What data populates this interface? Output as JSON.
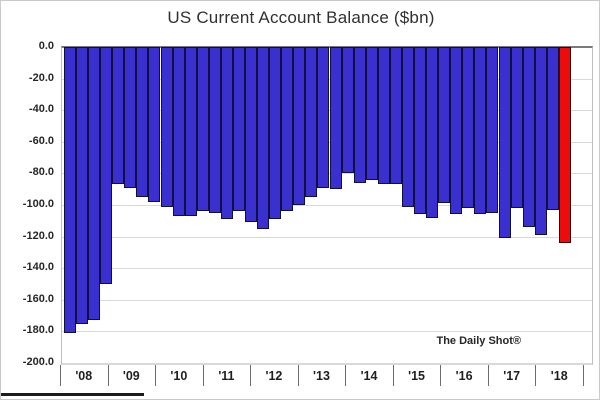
{
  "chart_data": {
    "type": "bar",
    "title": "US Current Account Balance ($bn)",
    "attribution": "The Daily Shot®",
    "xlabel": "",
    "ylabel": "",
    "ylim": [
      0,
      -200
    ],
    "y_tick_step": -20,
    "grid": true,
    "legend": "none",
    "y_tick_labels": [
      "0.0",
      "-20.0",
      "-40.0",
      "-60.0",
      "-80.0",
      "-100.0",
      "-120.0",
      "-140.0",
      "-160.0",
      "-180.0",
      "-200.0"
    ],
    "x_tick_labels": [
      "'08",
      "'09",
      "'10",
      "'11",
      "'12",
      "'13",
      "'14",
      "'15",
      "'16",
      "'17",
      "'18"
    ],
    "categories": [
      "2008Q1",
      "2008Q2",
      "2008Q3",
      "2008Q4",
      "2009Q1",
      "2009Q2",
      "2009Q3",
      "2009Q4",
      "2010Q1",
      "2010Q2",
      "2010Q3",
      "2010Q4",
      "2011Q1",
      "2011Q2",
      "2011Q3",
      "2011Q4",
      "2012Q1",
      "2012Q2",
      "2012Q3",
      "2012Q4",
      "2013Q1",
      "2013Q2",
      "2013Q3",
      "2013Q4",
      "2014Q1",
      "2014Q2",
      "2014Q3",
      "2014Q4",
      "2015Q1",
      "2015Q2",
      "2015Q3",
      "2015Q4",
      "2016Q1",
      "2016Q2",
      "2016Q3",
      "2016Q4",
      "2017Q1",
      "2017Q2",
      "2017Q3",
      "2017Q4",
      "2018Q1",
      "2018Q2"
    ],
    "values": [
      -181,
      -175,
      -173,
      -150,
      -87,
      -89,
      -95,
      -98,
      -101,
      -107,
      -107,
      -104,
      -105,
      -109,
      -104,
      -111,
      -115,
      -109,
      -104,
      -100,
      -95,
      -89,
      -90,
      -80,
      -86,
      -84,
      -87,
      -87,
      -101,
      -106,
      -108,
      -99,
      -106,
      -102,
      -106,
      -105,
      -121,
      -102,
      -114,
      -119,
      -103,
      -124
    ],
    "bar_color": "#3a30d0",
    "bar_border_color": "#10103f",
    "highlight_index": 41,
    "highlight_color": "#ec0c0c",
    "highlight_border_color": "#3c0404",
    "gridline_color": "#d9d9d9",
    "zero_line_color": "#7a7a7a"
  }
}
